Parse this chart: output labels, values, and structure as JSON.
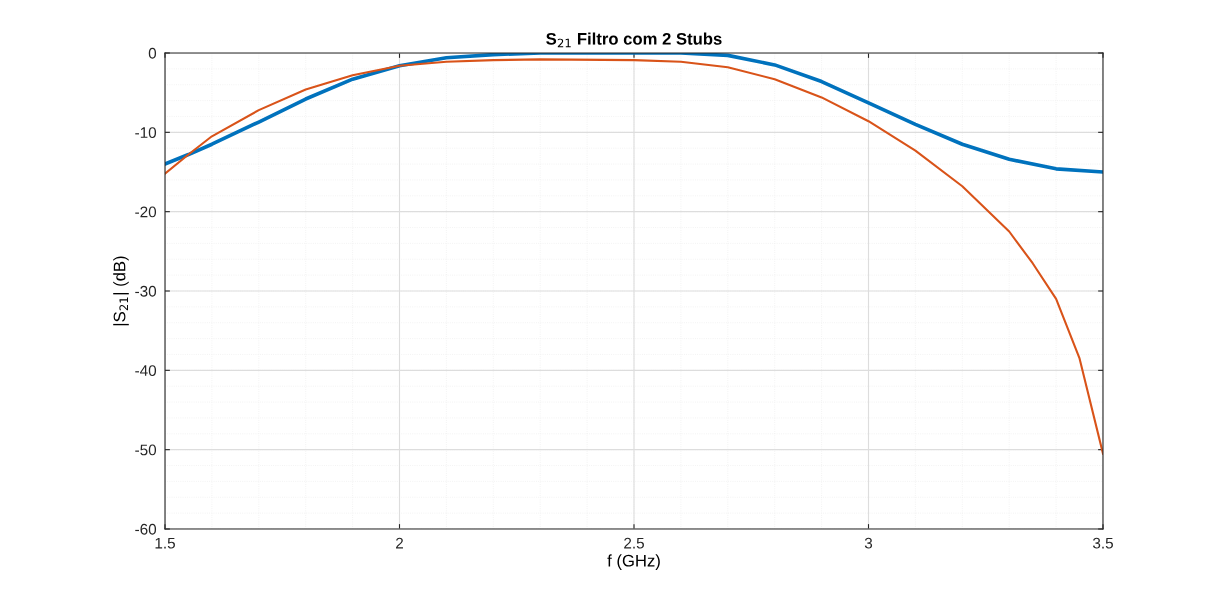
{
  "chart_data": {
    "type": "line",
    "title": "S$_{21}$ Filtro com 2 Stubs",
    "xlabel": "f (GHz)",
    "ylabel": "|S$_{21}$| (dB)",
    "xlim": [
      1.5,
      3.5
    ],
    "xticks": [
      1.5,
      2,
      2.5,
      3,
      3.5
    ],
    "ylim": [
      -60,
      0
    ],
    "yticks": [
      -60,
      -50,
      -40,
      -30,
      -20,
      -10,
      0
    ],
    "grid": true,
    "marker": "none",
    "line_style": "solid",
    "series": [
      {
        "color": "#0072bd",
        "x": [
          1.5,
          1.55,
          1.6,
          1.7,
          1.8,
          1.9,
          2.0,
          2.1,
          2.2,
          2.3,
          2.5,
          2.6,
          2.7,
          2.8,
          2.9,
          3.0,
          3.1,
          3.2,
          3.3,
          3.4,
          3.5
        ],
        "values": [
          -14,
          -12.8,
          -11.5,
          -8.7,
          -5.8,
          -3.3,
          -1.6,
          -0.6,
          -0.2,
          0,
          0,
          0,
          -0.3,
          -1.5,
          -3.6,
          -6.3,
          -9.0,
          -11.5,
          -13.4,
          -14.6,
          -15
        ]
      },
      {
        "color": "#d95319",
        "x": [
          1.5,
          1.55,
          1.6,
          1.7,
          1.8,
          1.9,
          2.0,
          2.1,
          2.2,
          2.3,
          2.5,
          2.6,
          2.7,
          2.8,
          2.9,
          3.0,
          3.1,
          3.2,
          3.3,
          3.35,
          3.4,
          3.45,
          3.5
        ],
        "values": [
          -15.2,
          -12.8,
          -10.5,
          -7.2,
          -4.6,
          -2.8,
          -1.6,
          -1.1,
          -0.9,
          -0.8,
          -0.9,
          -1.1,
          -1.8,
          -3.3,
          -5.6,
          -8.6,
          -12.3,
          -16.8,
          -22.5,
          -26.5,
          -31,
          -38.5,
          -50.5
        ]
      }
    ]
  }
}
